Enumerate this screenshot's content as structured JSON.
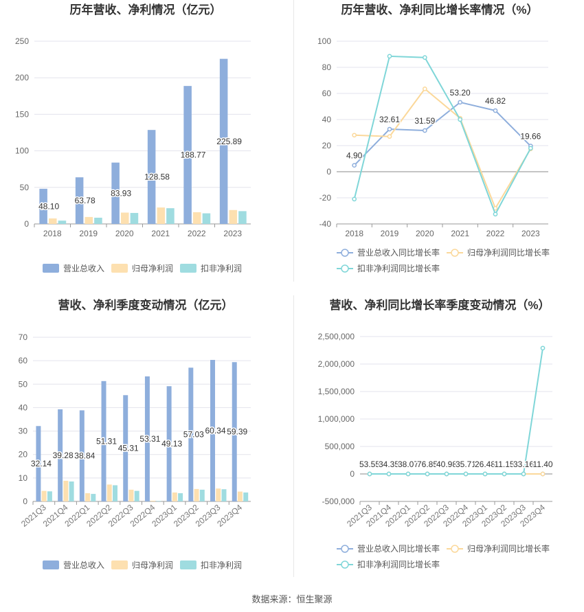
{
  "source_text": "数据来源：恒生聚源",
  "colors": {
    "revenue": "#8eaedc",
    "net_profit": "#fde0b0",
    "deducted": "#9fdce0",
    "rev_line": "#8eaedc",
    "np_line": "#fbd89a",
    "ded_line": "#7fd6d8"
  },
  "chart_data": [
    {
      "id": "annual-bar",
      "type": "bar",
      "title": "历年营收、净利情况（亿元）",
      "categories": [
        "2018",
        "2019",
        "2020",
        "2021",
        "2022",
        "2023"
      ],
      "ylim": [
        0,
        250
      ],
      "yticks": [
        0,
        50,
        100,
        150,
        200,
        250
      ],
      "series": [
        {
          "name": "营业总收入",
          "values": [
            48.1,
            63.78,
            83.93,
            128.58,
            188.77,
            225.89
          ],
          "labels": [
            "48.10",
            "63.78",
            "83.93",
            "128.58",
            "188.77",
            "225.89"
          ]
        },
        {
          "name": "归母净利润",
          "values": [
            7.5,
            9.5,
            15.5,
            22.5,
            16.0,
            19.0
          ]
        },
        {
          "name": "扣非净利润",
          "values": [
            4.5,
            8.5,
            15.0,
            21.5,
            14.5,
            17.5
          ]
        }
      ],
      "legend": "bottom"
    },
    {
      "id": "annual-line",
      "type": "line",
      "title": "历年营收、净利同比增长率情况（%）",
      "categories": [
        "2018",
        "2019",
        "2020",
        "2021",
        "2022",
        "2023"
      ],
      "ylim": [
        -40,
        100
      ],
      "yticks": [
        -40,
        -20,
        0,
        20,
        40,
        60,
        80,
        100
      ],
      "series": [
        {
          "name": "营业总收入同比增长率",
          "values": [
            4.9,
            32.61,
            31.59,
            53.2,
            46.82,
            19.66
          ],
          "labels": [
            "4.90",
            "32.61",
            "31.59",
            "53.20",
            "46.82",
            "19.66"
          ]
        },
        {
          "name": "归母净利润同比增长率",
          "values": [
            28.0,
            27.0,
            63.5,
            41.0,
            -28.0,
            17.5
          ]
        },
        {
          "name": "扣非净利润同比增长率",
          "values": [
            -21.0,
            88.5,
            87.5,
            40.0,
            -32.5,
            18.0
          ]
        }
      ],
      "legend": "bottom"
    },
    {
      "id": "quarterly-bar",
      "type": "bar",
      "title": "营收、净利季度变动情况（亿元）",
      "categories": [
        "2021Q3",
        "2021Q4",
        "2022Q1",
        "2022Q2",
        "2022Q3",
        "2022Q4",
        "2023Q1",
        "2023Q2",
        "2023Q3",
        "2023Q4"
      ],
      "ylim": [
        0,
        70
      ],
      "yticks": [
        0,
        10,
        20,
        30,
        40,
        50,
        60,
        70
      ],
      "series": [
        {
          "name": "营业总收入",
          "values": [
            32.14,
            39.28,
            38.84,
            51.31,
            45.31,
            53.31,
            49.13,
            57.03,
            60.34,
            59.39
          ],
          "labels": [
            "32.14",
            "39.28",
            "38.84",
            "51.31",
            "45.31",
            "53.31",
            "49.13",
            "57.03",
            "60.34",
            "59.39"
          ]
        },
        {
          "name": "归母净利润",
          "values": [
            4.5,
            8.8,
            3.5,
            7.2,
            5.0,
            0.3,
            3.8,
            5.3,
            5.5,
            4.2
          ]
        },
        {
          "name": "扣非净利润",
          "values": [
            4.3,
            8.5,
            3.2,
            6.9,
            4.5,
            0.2,
            3.5,
            5.0,
            5.2,
            3.8
          ]
        }
      ],
      "legend": "bottom"
    },
    {
      "id": "quarterly-line",
      "type": "line",
      "title": "营收、净利同比增长率季度变动情况（%）",
      "categories": [
        "2021Q3",
        "2021Q4",
        "2022Q1",
        "2022Q2",
        "2022Q3",
        "2022Q4",
        "2023Q1",
        "2023Q2",
        "2023Q3",
        "2023Q4"
      ],
      "ylim": [
        -500000,
        2500000
      ],
      "yticks": [
        -500000,
        0,
        500000,
        1000000,
        1500000,
        2000000,
        2500000
      ],
      "ytick_labels": [
        "-500,000",
        "0",
        "500,000",
        "1,000,000",
        "1,500,000",
        "2,000,000",
        "2,500,000"
      ],
      "series": [
        {
          "name": "营业总收入同比增长率",
          "values": [
            53.55,
            34.35,
            38.07,
            76.85,
            40.98,
            35.71,
            26.48,
            11.15,
            33.16,
            11.4
          ],
          "labels": [
            "53.55",
            "34.35",
            "38.07",
            "76.85",
            "40.98",
            "35.71",
            "26.48",
            "11.15",
            "33.16",
            "11.40"
          ]
        },
        {
          "name": "归母净利润同比增长率",
          "values": [
            0,
            0,
            0,
            0,
            0,
            0,
            0,
            0,
            0,
            0
          ]
        },
        {
          "name": "扣非净利润同比增长率",
          "values": [
            0,
            0,
            0,
            0,
            0,
            0,
            0,
            0,
            0,
            2290000
          ]
        }
      ],
      "legend": "bottom"
    }
  ]
}
